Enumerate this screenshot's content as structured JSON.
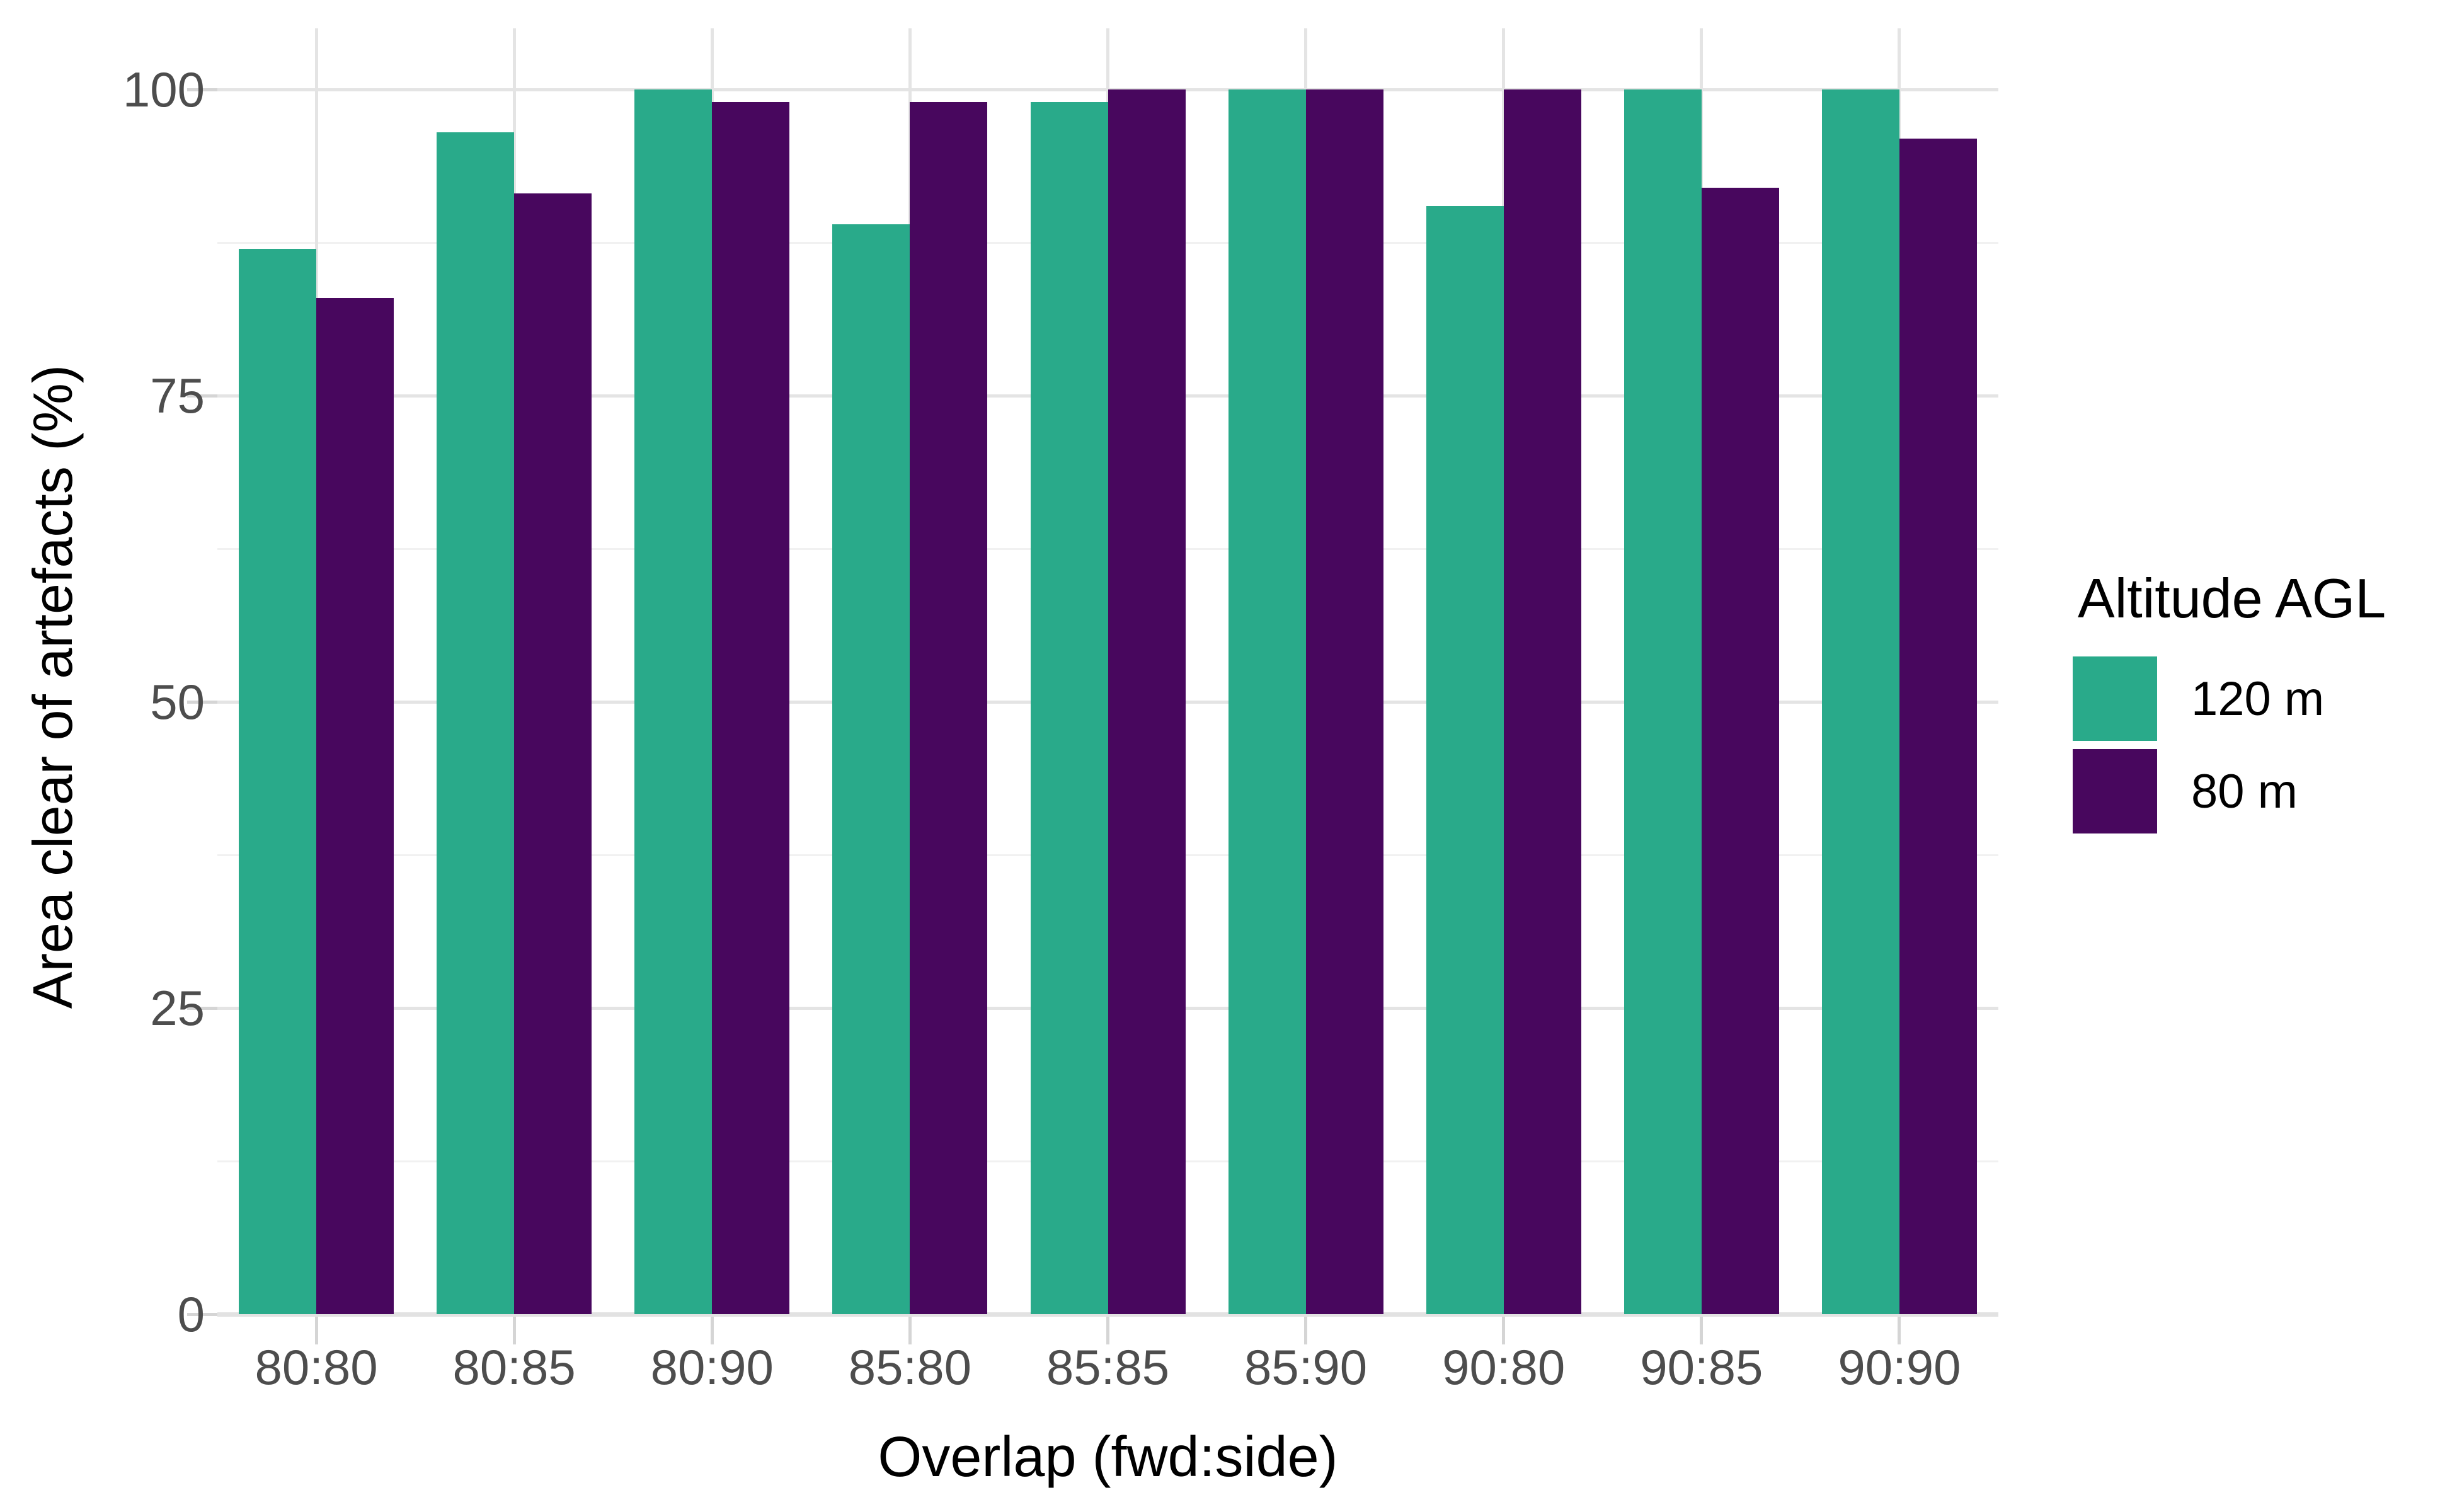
{
  "chart_data": {
    "type": "bar",
    "title": "",
    "xlabel": "Overlap (fwd:side)",
    "ylabel": "Area clear of artefacts (%)",
    "categories": [
      "80:80",
      "80:85",
      "80:90",
      "85:80",
      "85:85",
      "85:90",
      "90:80",
      "90:85",
      "90:90"
    ],
    "series": [
      {
        "name": "120 m",
        "color": "#29aa8a",
        "values": [
          87,
          96.5,
          100,
          89,
          99,
          100,
          90.5,
          100,
          100
        ]
      },
      {
        "name": "80 m",
        "color": "#48075e",
        "values": [
          83,
          91.5,
          99,
          99,
          100,
          100,
          100,
          92,
          96
        ]
      }
    ],
    "legend_title": "Altitude AGL",
    "legend_position": "right",
    "y_ticks": [
      0,
      25,
      50,
      75,
      100
    ],
    "y_minor_ticks": [
      12.5,
      37.5,
      62.5,
      87.5
    ],
    "ylim": [
      0,
      105
    ],
    "grid": true
  },
  "colors": {
    "background": "#ffffff",
    "grid_major": "#e4e4e4",
    "grid_minor": "#f1f1f1",
    "tick_mark": "#d5d5d5",
    "axis_text": "#4d4d4d",
    "title_text": "#000000"
  }
}
